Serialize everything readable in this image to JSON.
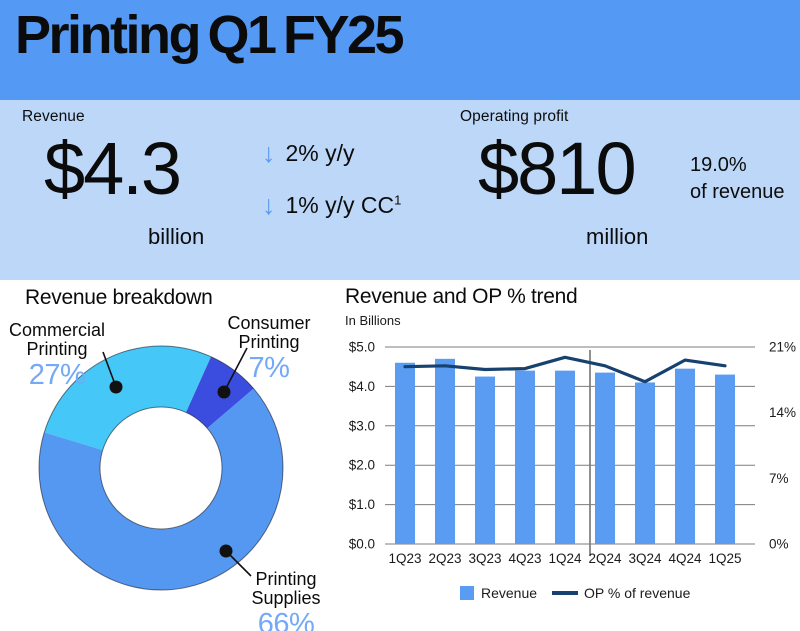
{
  "header": {
    "title": "Printing Q1 FY25"
  },
  "kpi_band": {
    "revenue": {
      "label": "Revenue",
      "value": "$4.3",
      "unit": "billion",
      "changes": [
        {
          "direction": "down",
          "text": "2% y/y"
        },
        {
          "direction": "down",
          "text": "1% y/y CC",
          "sup": "1"
        }
      ]
    },
    "operating_profit": {
      "label": "Operating profit",
      "value": "$810",
      "unit": "million",
      "ratio_line1": "19.0%",
      "ratio_line2": "of revenue"
    }
  },
  "icons": {
    "arrow_down": "↓"
  },
  "colors": {
    "header_bg": "#5499F3",
    "band_bg": "#BDD7F8",
    "accent_blue": "#5B9CF3",
    "pct_label_blue": "#73A9F7",
    "line_navy": "#17416F"
  },
  "chart_data": [
    {
      "type": "pie",
      "donut": true,
      "title": "Revenue breakdown",
      "labels": [
        "Commercial Printing",
        "Consumer Printing",
        "Printing Supplies"
      ],
      "values": [
        27,
        7,
        66
      ],
      "unit": "%",
      "colors": [
        "#45C8F7",
        "#3B4DDE",
        "#5598F2"
      ],
      "start_angle_deg": -73,
      "legend_position": "callouts"
    },
    {
      "type": "bar+line",
      "title": "Revenue and OP % trend",
      "subtitle": "In Billions",
      "categories": [
        "1Q23",
        "2Q23",
        "3Q23",
        "4Q23",
        "1Q24",
        "2Q24",
        "3Q24",
        "4Q24",
        "1Q25"
      ],
      "series": [
        {
          "name": "Revenue",
          "type": "bar",
          "axis": "left",
          "values": [
            4.6,
            4.7,
            4.25,
            4.4,
            4.4,
            4.35,
            4.1,
            4.45,
            4.3
          ],
          "color": "#5B9CF3"
        },
        {
          "name": "OP % of revenue",
          "type": "line",
          "axis": "right",
          "values": [
            18.9,
            19.0,
            18.6,
            18.7,
            19.9,
            19.0,
            17.3,
            19.6,
            19.0
          ],
          "color": "#17416F"
        }
      ],
      "left_axis": {
        "ticks": [
          "$5.0",
          "$4.0",
          "$3.0",
          "$2.0",
          "$1.0",
          "$0.0"
        ],
        "min": 0,
        "max": 5
      },
      "right_axis": {
        "ticks": [
          "21%",
          "14%",
          "7%",
          "0%"
        ],
        "min": 0,
        "max": 21
      },
      "grid": true,
      "legend_position": "bottom"
    }
  ]
}
